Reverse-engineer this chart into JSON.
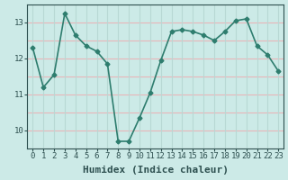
{
  "x": [
    0,
    1,
    2,
    3,
    4,
    5,
    6,
    7,
    8,
    9,
    10,
    11,
    12,
    13,
    14,
    15,
    16,
    17,
    18,
    19,
    20,
    21,
    22,
    23
  ],
  "y": [
    12.3,
    11.2,
    11.55,
    13.25,
    12.65,
    12.35,
    12.2,
    11.85,
    9.7,
    9.7,
    10.35,
    11.05,
    11.95,
    12.75,
    12.8,
    12.75,
    12.65,
    12.5,
    12.75,
    13.05,
    13.1,
    12.35,
    12.1,
    11.65
  ],
  "xlabel": "Humidex (Indice chaleur)",
  "xlim": [
    -0.5,
    23.5
  ],
  "ylim": [
    9.5,
    13.5
  ],
  "yticks": [
    10,
    11,
    12,
    13
  ],
  "xticks": [
    0,
    1,
    2,
    3,
    4,
    5,
    6,
    7,
    8,
    9,
    10,
    11,
    12,
    13,
    14,
    15,
    16,
    17,
    18,
    19,
    20,
    21,
    22,
    23
  ],
  "line_color": "#2e7d6e",
  "marker": "D",
  "marker_size": 2.5,
  "bg_color": "#cceae7",
  "grid_color_h": "#e8b4b8",
  "grid_color_v": "#b8d8d4",
  "tick_color": "#2e5050",
  "tick_fontsize": 6.5,
  "xlabel_fontsize": 8,
  "line_width": 1.2
}
